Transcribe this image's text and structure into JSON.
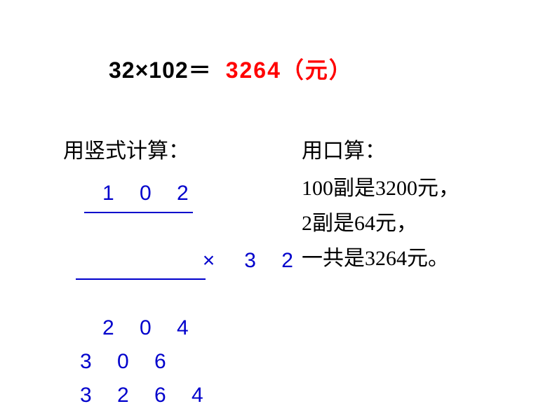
{
  "equation": {
    "lhs": "32×102＝",
    "result": "3264（元）"
  },
  "leftColumn": {
    "title": "用竖式计算：",
    "calc": {
      "row1": "1 0 2",
      "multSign": "×",
      "row2_num": "3 2",
      "row3": "2 0 4",
      "row4": "3 0 6",
      "row5": "3 2 6 4"
    }
  },
  "rightColumn": {
    "title": "用口算：",
    "line1": "100副是3200元，",
    "line2": "2副是64元，",
    "line3": "一共是3264元。"
  },
  "colors": {
    "text_black": "#000000",
    "text_red": "#ff0000",
    "text_blue": "#0000cc",
    "background": "#ffffff"
  },
  "fonts": {
    "equation_size": 32,
    "body_size": 30,
    "equation_weight": "bold"
  }
}
